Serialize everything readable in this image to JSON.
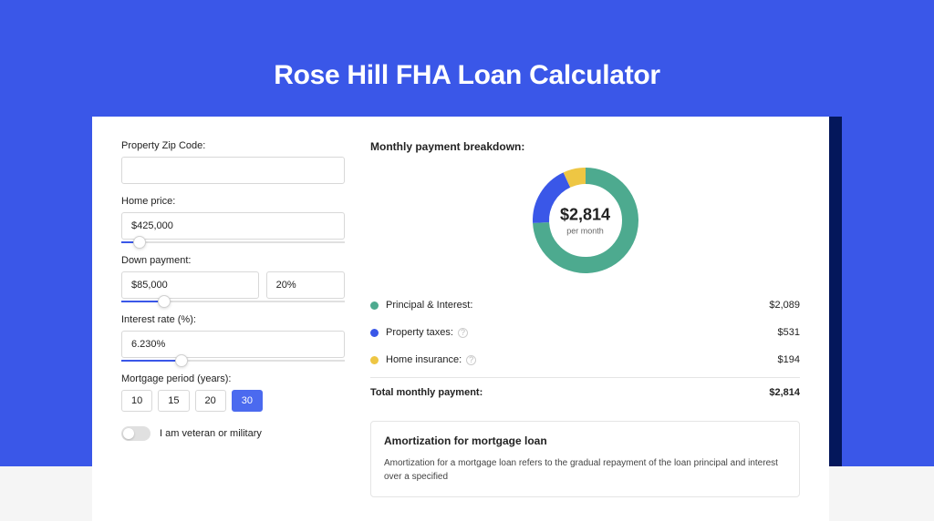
{
  "hero": {
    "title": "Rose Hill FHA Loan Calculator",
    "background_color": "#3a57e8",
    "shadow_color": "#04175b"
  },
  "form": {
    "zip": {
      "label": "Property Zip Code:",
      "value": ""
    },
    "home_price": {
      "label": "Home price:",
      "value": "$425,000",
      "slider_pct": 8
    },
    "down_payment": {
      "label": "Down payment:",
      "amount": "$85,000",
      "pct": "20%",
      "slider_pct": 19
    },
    "interest_rate": {
      "label": "Interest rate (%):",
      "value": "6.230%",
      "slider_pct": 27
    },
    "period": {
      "label": "Mortgage period (years):",
      "options": [
        "10",
        "15",
        "20",
        "30"
      ],
      "active": "30"
    },
    "veteran": {
      "label": "I am veteran or military",
      "on": false
    }
  },
  "results": {
    "title": "Monthly payment breakdown:",
    "donut": {
      "amount": "$2,814",
      "per_label": "per month",
      "slices": [
        {
          "label": "Principal & Interest:",
          "value": "$2,089",
          "color": "#4daa8f",
          "pct": 74.2,
          "has_info": false
        },
        {
          "label": "Property taxes:",
          "value": "$531",
          "color": "#3a57e8",
          "pct": 18.9,
          "has_info": true
        },
        {
          "label": "Home insurance:",
          "value": "$194",
          "color": "#eec643",
          "pct": 6.9,
          "has_info": true
        }
      ],
      "thickness": 18,
      "size": 120
    },
    "total_label": "Total monthly payment:",
    "total_value": "$2,814"
  },
  "amortization": {
    "title": "Amortization for mortgage loan",
    "text": "Amortization for a mortgage loan refers to the gradual repayment of the loan principal and interest over a specified"
  }
}
